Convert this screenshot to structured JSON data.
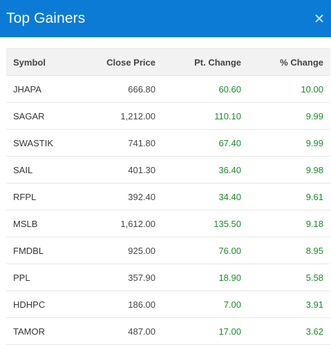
{
  "header": {
    "title": "Top Gainers",
    "close_icon": "close-icon"
  },
  "table": {
    "columns": [
      "Symbol",
      "Close Price",
      "Pt. Change",
      "% Change"
    ],
    "rows": [
      {
        "symbol": "JHAPA",
        "close": "666.80",
        "pt": "60.60",
        "pct": "10.00"
      },
      {
        "symbol": "SAGAR",
        "close": "1,212.00",
        "pt": "110.10",
        "pct": "9.99"
      },
      {
        "symbol": "SWASTIK",
        "close": "741.80",
        "pt": "67.40",
        "pct": "9.99"
      },
      {
        "symbol": "SAIL",
        "close": "401.30",
        "pt": "36.40",
        "pct": "9.98"
      },
      {
        "symbol": "RFPL",
        "close": "392.40",
        "pt": "34.40",
        "pct": "9.61"
      },
      {
        "symbol": "MSLB",
        "close": "1,612.00",
        "pt": "135.50",
        "pct": "9.18"
      },
      {
        "symbol": "FMDBL",
        "close": "925.00",
        "pt": "76.00",
        "pct": "8.95"
      },
      {
        "symbol": "PPL",
        "close": "357.90",
        "pt": "18.90",
        "pct": "5.58"
      },
      {
        "symbol": "HDHPC",
        "close": "186.00",
        "pt": "7.00",
        "pct": "3.91"
      },
      {
        "symbol": "TAMOR",
        "close": "487.00",
        "pt": "17.00",
        "pct": "3.62"
      }
    ]
  },
  "colors": {
    "header_bg": "#0b7bd6",
    "positive": "#1a8a2c"
  }
}
